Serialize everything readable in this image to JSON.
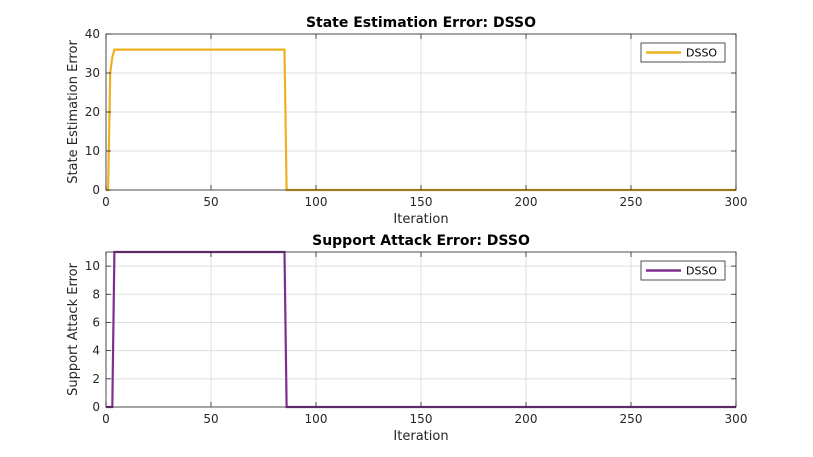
{
  "chart_data": [
    {
      "type": "line",
      "title": "State Estimation Error: DSSO",
      "xlabel": "Iteration",
      "ylabel": "State Estimation Error",
      "xlim": [
        0,
        300
      ],
      "ylim": [
        0,
        40
      ],
      "xticks": [
        0,
        50,
        100,
        150,
        200,
        250,
        300
      ],
      "yticks": [
        0,
        10,
        20,
        30,
        40
      ],
      "grid": true,
      "legend": "top-right",
      "series": [
        {
          "name": "DSSO",
          "color": "#EDB120",
          "x": [
            0,
            1,
            2,
            3,
            4,
            5,
            84,
            85,
            86,
            300
          ],
          "y": [
            0,
            0,
            30,
            34,
            36,
            36,
            36,
            36,
            0,
            0
          ]
        }
      ]
    },
    {
      "type": "line",
      "title": "Support Attack Error: DSSO",
      "xlabel": "Iteration",
      "ylabel": "Support Attack Error",
      "xlim": [
        0,
        300
      ],
      "ylim": [
        0,
        11
      ],
      "xticks": [
        0,
        50,
        100,
        150,
        200,
        250,
        300
      ],
      "yticks": [
        0,
        2,
        4,
        6,
        8,
        10
      ],
      "grid": true,
      "legend": "top-right",
      "series": [
        {
          "name": "DSSO",
          "color": "#7E2F8E",
          "x": [
            0,
            2,
            3,
            4,
            5,
            84,
            85,
            86,
            300
          ],
          "y": [
            0,
            0,
            0,
            11,
            11,
            11,
            11,
            0,
            0
          ]
        }
      ]
    }
  ]
}
